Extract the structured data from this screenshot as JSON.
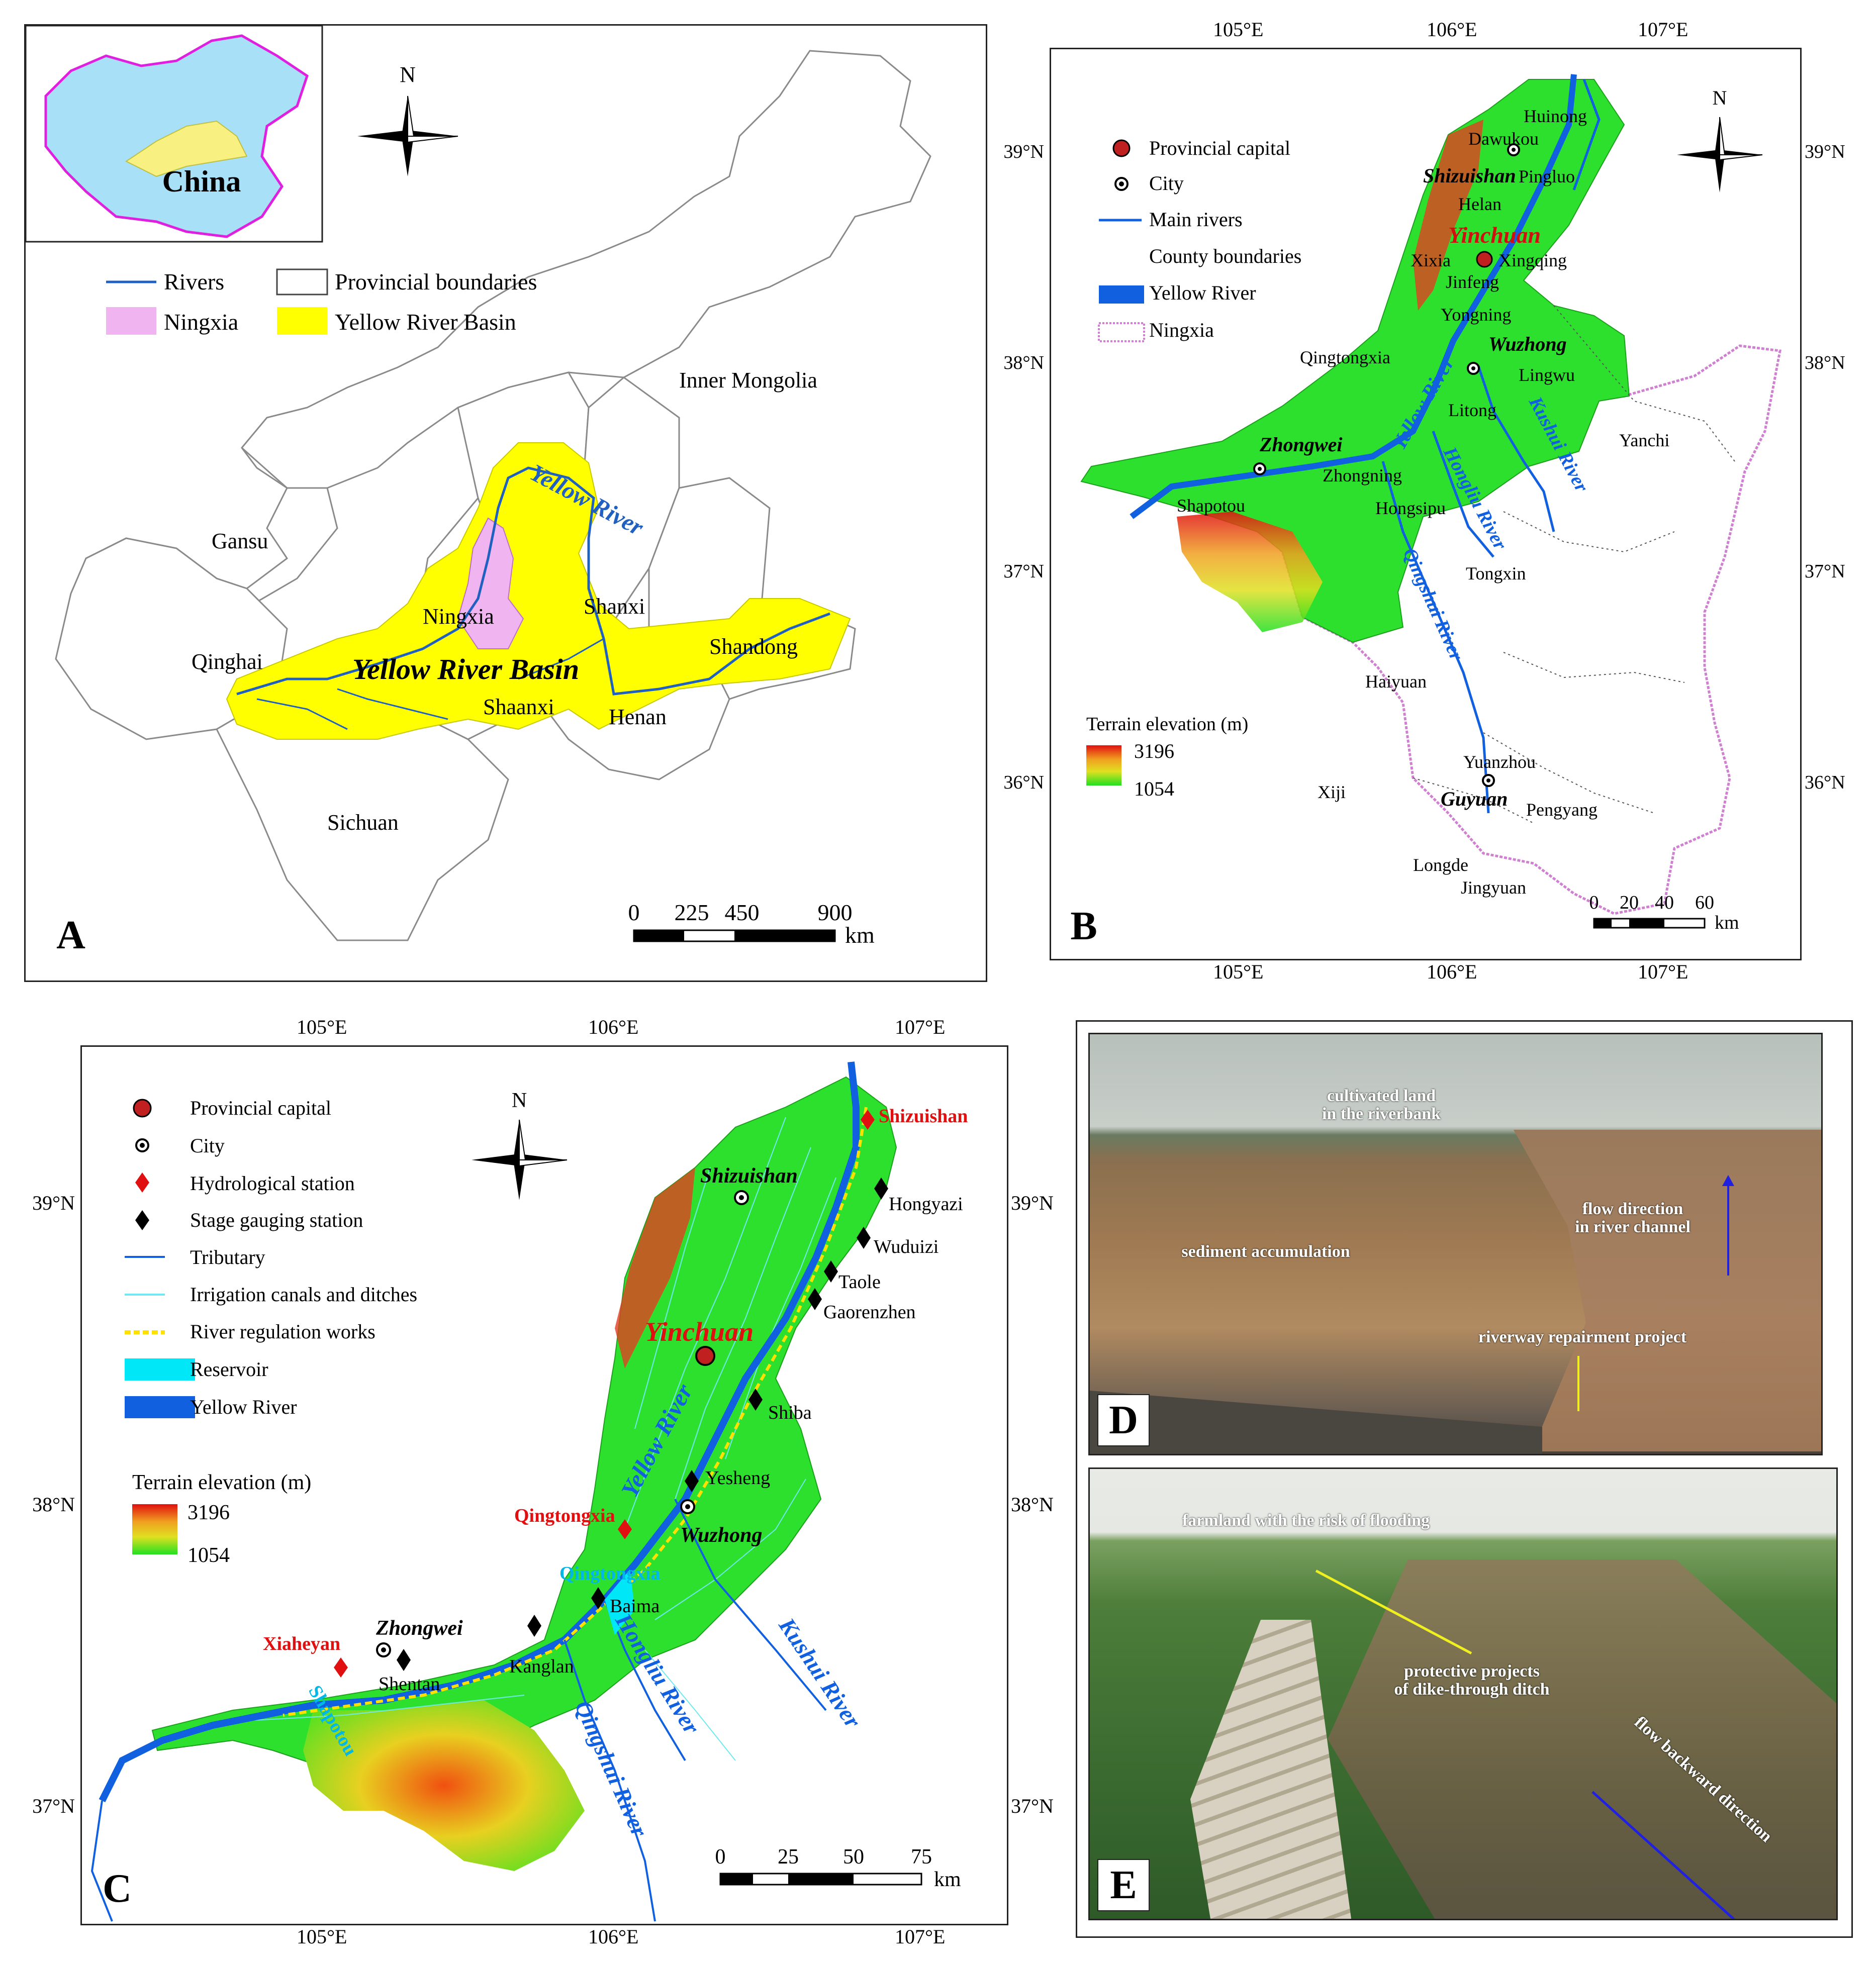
{
  "panels": {
    "A": {
      "label": "A",
      "inset_label": "China",
      "legend": {
        "rivers": "Rivers",
        "ningxia": "Ningxia",
        "provincial": "Provincial boundaries",
        "basin": "Yellow River Basin"
      },
      "regions": {
        "inner_mongolia": "Inner Mongolia",
        "gansu": "Gansu",
        "qinghai": "Qinghai",
        "ningxia": "Ningxia",
        "shanxi": "Shanxi",
        "shaanxi": "Shaanxi",
        "henan": "Henan",
        "shandong": "Shandong",
        "sichuan": "Sichuan"
      },
      "river_label": "Yellow River",
      "basin_label": "Yellow River Basin",
      "north": "N",
      "scale": {
        "t0": "0",
        "t1": "225",
        "t2": "450",
        "t3": "900",
        "unit": "km"
      }
    },
    "B": {
      "label": "B",
      "lon_ticks": [
        "105°E",
        "106°E",
        "107°E"
      ],
      "lat_ticks": [
        "39°N",
        "38°N",
        "37°N",
        "36°N"
      ],
      "legend": {
        "capital": "Provincial capital",
        "city": "City",
        "main_rivers": "Main rivers",
        "county": "County boundaries",
        "yellow_river": "Yellow River",
        "ningxia": "Ningxia"
      },
      "elevation": {
        "title": "Terrain elevation (m)",
        "max": "3196",
        "min": "1054"
      },
      "places": {
        "huinong": "Huinong",
        "dawukou": "Dawukou",
        "shizuishan": "Shizuishan",
        "pingluo": "Pingluo",
        "helan": "Helan",
        "yinchuan": "Yinchuan",
        "xixia": "Xixia",
        "xingqing": "Xingqing",
        "jinfeng": "Jinfeng",
        "yongning": "Yongning",
        "wuzhong": "Wuzhong",
        "qingtongxia": "Qingtongxia",
        "lingwu": "Lingwu",
        "litong": "Litong",
        "zhongwei": "Zhongwei",
        "yanchi": "Yanchi",
        "zhongning": "Zhongning",
        "hongsipu": "Hongsipu",
        "shapotou": "Shapotou",
        "tongxin": "Tongxin",
        "haiyuan": "Haiyuan",
        "yuanzhou": "Yuanzhou",
        "xiji": "Xiji",
        "guyuan": "Guyuan",
        "pengyang": "Pengyang",
        "longde": "Longde",
        "jingyuan": "Jingyuan"
      },
      "rivers": {
        "yellow": "Yellow River",
        "kushui": "Kushui River",
        "hongliu": "Hongliu River",
        "qingshui": "Qingshui River"
      },
      "north": "N",
      "scale": {
        "t0": "0",
        "t1": "20",
        "t2": "40",
        "t3": "60",
        "unit": "km"
      }
    },
    "C": {
      "label": "C",
      "lon_ticks": [
        "105°E",
        "106°E",
        "107°E"
      ],
      "lat_ticks": [
        "39°N",
        "38°N",
        "37°N"
      ],
      "legend": {
        "capital": "Provincial capital",
        "city": "City",
        "hydro": "Hydrological station",
        "stage": "Stage gauging station",
        "tributary": "Tributary",
        "canals": "Irrigation canals and ditches",
        "regulation": "River regulation works",
        "reservoir": "Reservoir",
        "yellow_river": "Yellow River"
      },
      "elevation": {
        "title": "Terrain elevation (m)",
        "max": "3196",
        "min": "1054"
      },
      "places": {
        "shizuishan_station": "Shizuishan",
        "shizuishan_city": "Shizuishan",
        "hongyazi": "Hongyazi",
        "wuduizi": "Wuduizi",
        "taole": "Taole",
        "gaorenzhen": "Gaorenzhen",
        "yinchuan": "Yinchuan",
        "shiba": "Shiba",
        "yesheng": "Yesheng",
        "qingtongxia_station": "Qingtongxia",
        "wuzhong": "Wuzhong",
        "qingtongxia_res": "Qingtongxia",
        "baima": "Baima",
        "zhongwei": "Zhongwei",
        "xiaheyan": "Xiaheyan",
        "shentan": "Shentan",
        "kanglan": "Kanglan",
        "shapotou": "Shapotou"
      },
      "rivers": {
        "yellow": "Yellow River",
        "hongliu": "Hongliu River",
        "kushui": "Kushui River",
        "qingshui": "Qingshui River"
      },
      "north": "N",
      "scale": {
        "t0": "0",
        "t1": "25",
        "t2": "50",
        "t3": "75",
        "unit": "km"
      }
    },
    "D": {
      "label": "D",
      "annotations": {
        "land": "cultivated land\nin the riverbank",
        "flow": "flow direction\nin river channel",
        "sediment": "sediment accumulation",
        "project": "riverway repairment project"
      }
    },
    "E": {
      "label": "E",
      "annotations": {
        "farmland": "farmland with the risk of flooding",
        "protective": "protective projects\nof dike-through ditch",
        "backflow": "flow backward direction"
      }
    }
  }
}
